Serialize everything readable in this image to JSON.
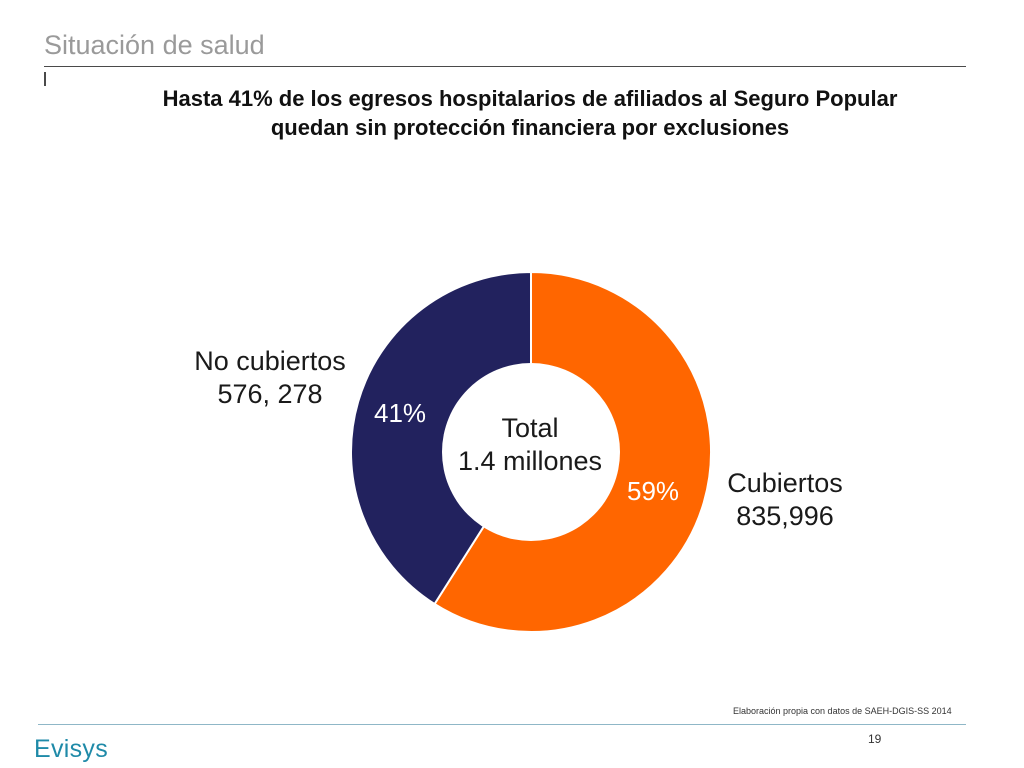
{
  "header": {
    "title": "Situación de salud"
  },
  "subtitle": {
    "line1": "Hasta 41% de los egresos hospitalarios de afiliados al Seguro Popular",
    "line2": "quedan sin protección financiera por exclusiones"
  },
  "chart_data": {
    "type": "pie",
    "variant": "donut",
    "title": "Hasta 41% de los egresos hospitalarios de afiliados al Seguro Popular quedan sin protección financiera por exclusiones",
    "center_label": {
      "line1": "Total",
      "line2": "1.4 millones"
    },
    "slices": [
      {
        "name": "Cubiertos",
        "value_label": "835,996",
        "percent": 59,
        "percent_label": "59%",
        "color": "#ff6600"
      },
      {
        "name": "No cubiertos",
        "value_label": "576, 278",
        "percent": 41,
        "percent_label": "41%",
        "color": "#22225e"
      }
    ]
  },
  "source_note": "Elaboración propia con datos de SAEH-DGIS-SS 2014",
  "footer": {
    "logo_text": "Evisys",
    "page_number": "19"
  },
  "colors": {
    "accent_teal": "#1f8aa8",
    "orange": "#ff6600",
    "navy": "#22225e"
  }
}
